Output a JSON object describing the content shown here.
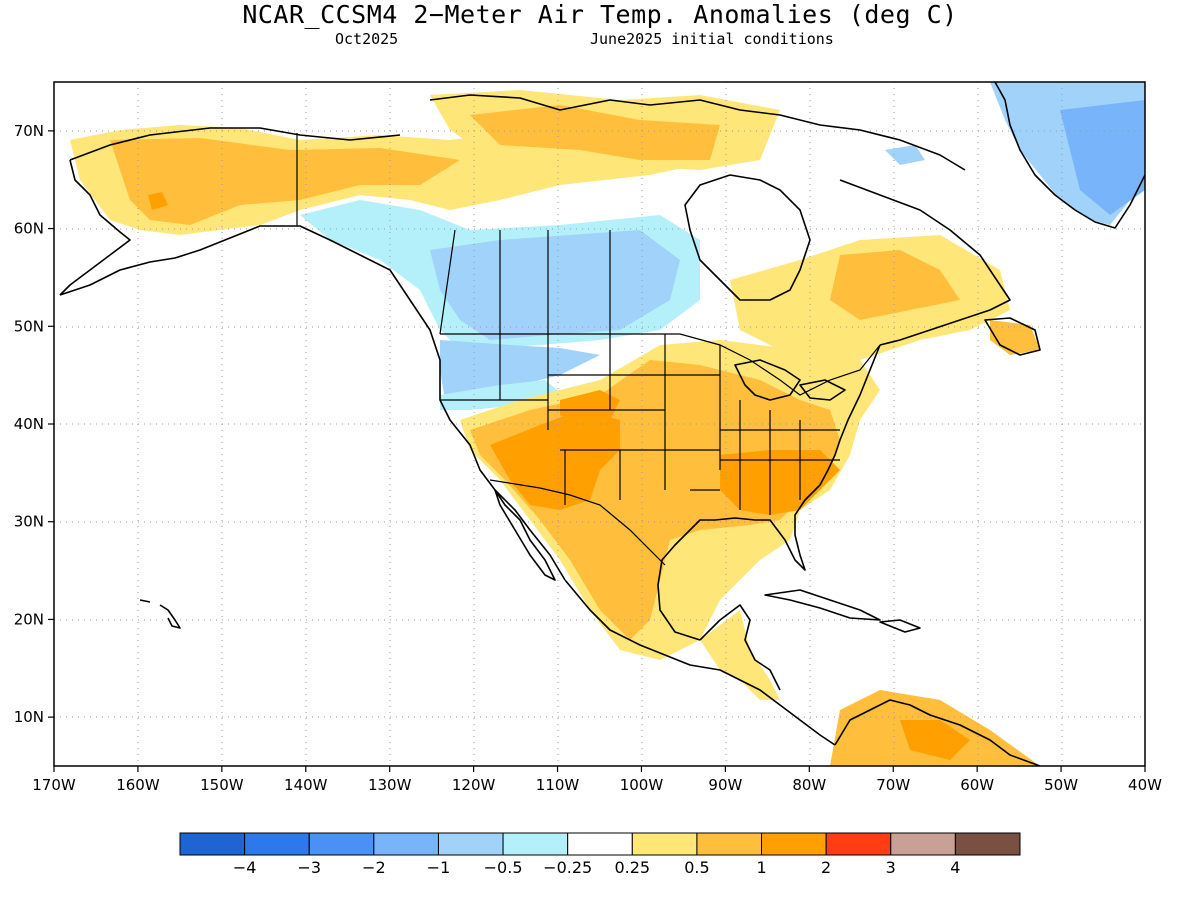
{
  "title": "NCAR_CCSM4 2−Meter Air Temp. Anomalies (deg C)",
  "subtitle_left": "Oct2025",
  "subtitle_right": "June2025 initial conditions",
  "chart_data": {
    "type": "heatmap",
    "title": "NCAR_CCSM4 2−Meter Air Temp. Anomalies (deg C)",
    "xlim": [
      -170,
      -40
    ],
    "ylim": [
      5,
      75
    ],
    "grid": true,
    "x_ticks": [
      "170W",
      "160W",
      "150W",
      "140W",
      "130W",
      "120W",
      "110W",
      "100W",
      "90W",
      "80W",
      "70W",
      "60W",
      "50W",
      "40W"
    ],
    "x_tick_values": [
      -170,
      -160,
      -150,
      -140,
      -130,
      -120,
      -110,
      -100,
      -90,
      -80,
      -70,
      -60,
      -50,
      -40
    ],
    "y_ticks": [
      "10N",
      "20N",
      "30N",
      "40N",
      "50N",
      "60N",
      "70N"
    ],
    "y_tick_values": [
      10,
      20,
      30,
      40,
      50,
      60,
      70
    ],
    "colorbar": {
      "labels": [
        "−4",
        "−3",
        "−2",
        "−1",
        "−0.5",
        "−0.25",
        "0.25",
        "0.5",
        "1",
        "2",
        "3",
        "4"
      ],
      "colors": [
        "#1e64d2",
        "#2d78eb",
        "#4b91f5",
        "#78b4fa",
        "#a0d2fa",
        "#b4f0fa",
        "#ffffff",
        "#ffe678",
        "#ffbe3c",
        "#ffa000",
        "#ff3c14",
        "#c8a096",
        "#7a5042"
      ]
    },
    "regions": [
      {
        "name": "Alaska",
        "anomaly_band": "0.25 to 0.5"
      },
      {
        "name": "Western Canada",
        "anomaly_band": "−1 to −0.5"
      },
      {
        "name": "Southwestern United States",
        "anomaly_band": "1 to 2"
      },
      {
        "name": "Southeastern United States",
        "anomaly_band": "1 to 2"
      },
      {
        "name": "Mexico",
        "anomaly_band": "0.5 to 1"
      },
      {
        "name": "Greenland",
        "anomaly_band": "−1 to −0.5"
      },
      {
        "name": "Eastern Canada",
        "anomaly_band": "0.25 to 0.5"
      },
      {
        "name": "Northern South America",
        "anomaly_band": "0.5 to 1"
      }
    ]
  }
}
